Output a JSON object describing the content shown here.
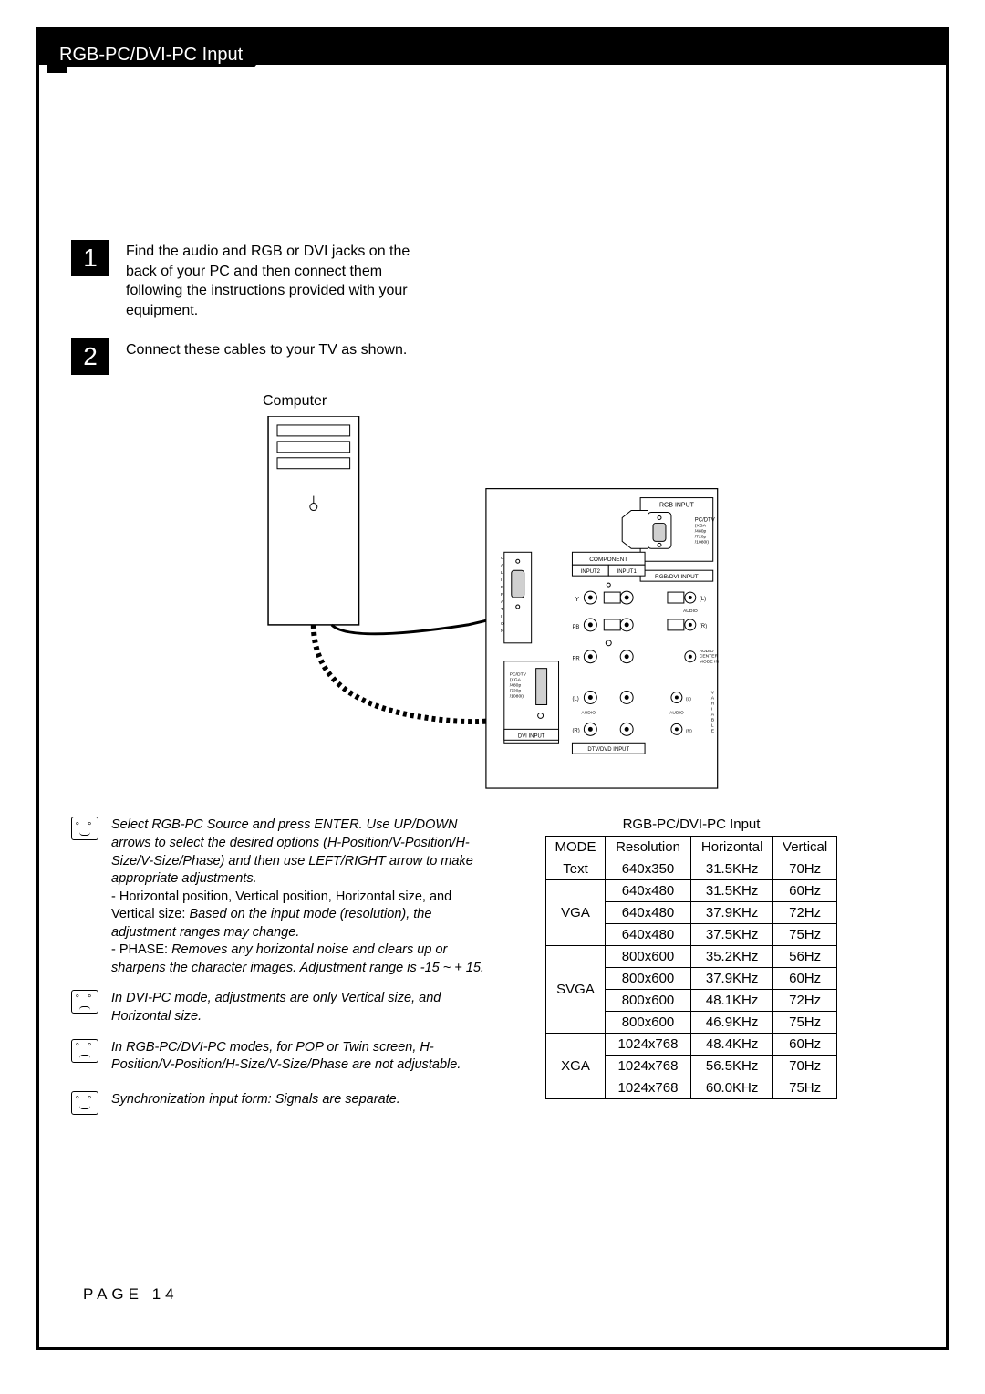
{
  "header": {
    "title": "RGB-PC/DVI-PC Input"
  },
  "steps": [
    {
      "num": "1",
      "text": "Find the audio and RGB or DVI jacks on the back of your PC and then connect them following the instructions provided with your equipment."
    },
    {
      "num": "2",
      "text": "Connect these cables to your TV as shown."
    }
  ],
  "diagram": {
    "label": "Computer",
    "port_labels": {
      "rgb_input": "RGB INPUT",
      "pcdtv": "PC/DTV\n(XGA\n/480p\n/720p\n/1080i)",
      "rgb_dvi_input": "RGB/DVI INPUT",
      "component": "COMPONENT",
      "input2": "INPUT2",
      "input1": "INPUT1",
      "audio": "AUDIO",
      "audio_center": "AUDIO\nCENTER\nMODE IN",
      "dvi_input": "DVI INPUT",
      "dtv_dvd_input": "DTV/DVD INPUT",
      "calibration": "CALIBRATION",
      "y": "Y",
      "pb": "PB",
      "pr": "PR",
      "l": "(L)",
      "r": "(R)",
      "variable": "VARIABLE"
    }
  },
  "notes": [
    {
      "mood": "smile",
      "paragraphs": [
        {
          "style": "italic",
          "text": "Select RGB-PC Source and press ENTER. Use UP/DOWN arrows to select the desired options (H-Position/V-Position/H-Size/V-Size/Phase) and then use LEFT/RIGHT arrow to make appropriate adjustments."
        },
        {
          "style": "mixed",
          "text_plain_prefix": "- Horizontal position, Vertical position, Horizontal size, and Vertical size:",
          "text_italic": " Based on the input mode (resolution), the adjustment ranges may change."
        },
        {
          "style": "mixed",
          "text_plain_prefix": "- PHASE:",
          "text_italic": "Removes any horizontal noise and clears up or sharpens the character images. Adjustment range is -15 ~ + 15."
        }
      ]
    },
    {
      "mood": "frown",
      "paragraphs": [
        {
          "style": "italic",
          "text": "In DVI-PC mode, adjustments are only Vertical size, and Horizontal size."
        }
      ]
    },
    {
      "mood": "frown",
      "paragraphs": [
        {
          "style": "italic",
          "text": "In RGB-PC/DVI-PC modes, for POP or Twin screen, H-Position/V-Position/H-Size/V-Size/Phase are not adjustable."
        }
      ]
    },
    {
      "mood": "smile",
      "paragraphs": [
        {
          "style": "italic",
          "text": "Synchronization input form: Signals are separate."
        }
      ]
    }
  ],
  "table": {
    "title": "RGB-PC/DVI-PC Input",
    "headers": [
      "MODE",
      "Resolution",
      "Horizontal",
      "Vertical"
    ],
    "groups": [
      {
        "mode": "Text",
        "rows": [
          [
            "640x350",
            "31.5KHz",
            "70Hz"
          ]
        ]
      },
      {
        "mode": "VGA",
        "rows": [
          [
            "640x480",
            "31.5KHz",
            "60Hz"
          ],
          [
            "640x480",
            "37.9KHz",
            "72Hz"
          ],
          [
            "640x480",
            "37.5KHz",
            "75Hz"
          ]
        ]
      },
      {
        "mode": "SVGA",
        "rows": [
          [
            "800x600",
            "35.2KHz",
            "56Hz"
          ],
          [
            "800x600",
            "37.9KHz",
            "60Hz"
          ],
          [
            "800x600",
            "48.1KHz",
            "72Hz"
          ],
          [
            "800x600",
            "46.9KHz",
            "75Hz"
          ]
        ]
      },
      {
        "mode": "XGA",
        "rows": [
          [
            "1024x768",
            "48.4KHz",
            "60Hz"
          ],
          [
            "1024x768",
            "56.5KHz",
            "70Hz"
          ],
          [
            "1024x768",
            "60.0KHz",
            "75Hz"
          ]
        ]
      }
    ]
  },
  "footer": {
    "page": "PAGE 14"
  },
  "colors": {
    "black": "#000000",
    "white": "#ffffff"
  }
}
